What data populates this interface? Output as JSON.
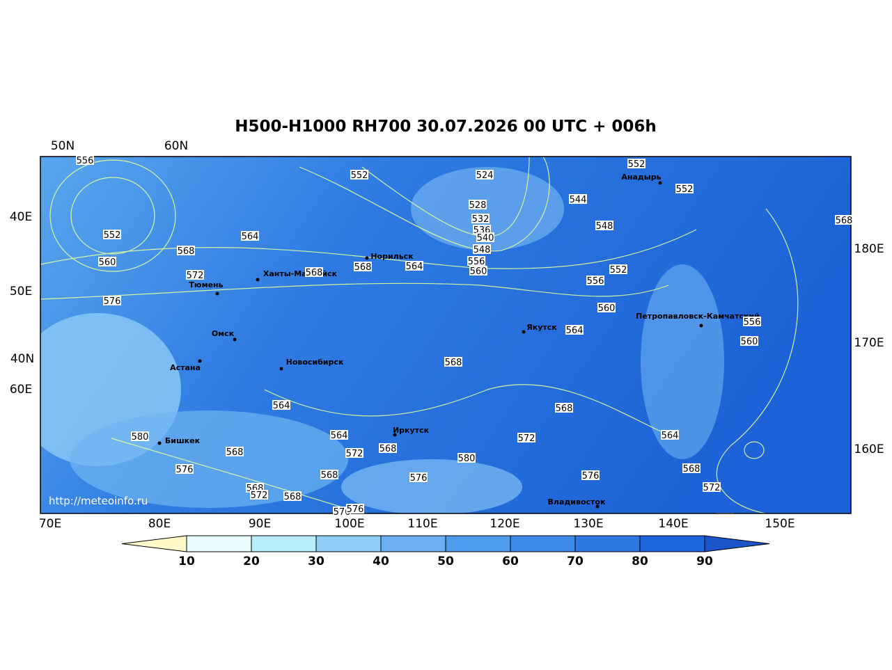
{
  "title": "H500-H1000 RH700 30.07.2026 00 UTC + 006h",
  "top_labels": [
    "50N",
    "60N"
  ],
  "left_labels": [
    "40E",
    "50E",
    "40N",
    "60E"
  ],
  "right_labels": [
    "180E",
    "170E",
    "160E"
  ],
  "bottom_labels": [
    "70E",
    "80E",
    "90E",
    "100E",
    "110E",
    "120E",
    "130E",
    "140E",
    "150E"
  ],
  "cities": [
    "Анадырь",
    "Норильск",
    "Ханты-Мансийск",
    "Тюмень",
    "Якутск",
    "Петропавловск-Камчатский",
    "Омск",
    "Астана",
    "Новосибирск",
    "Иркутск",
    "Бишкек",
    "Владивосток"
  ],
  "contour_labels": [
    "556",
    "552",
    "524",
    "552",
    "552",
    "528",
    "544",
    "532",
    "536",
    "540",
    "548",
    "552",
    "564",
    "568",
    "548",
    "560",
    "568",
    "564",
    "556",
    "560",
    "552",
    "572",
    "568",
    "556",
    "568",
    "576",
    "560",
    "556",
    "564",
    "560",
    "568",
    "564",
    "568",
    "580",
    "564",
    "572",
    "564",
    "568",
    "572",
    "568",
    "580",
    "576",
    "568",
    "576",
    "568",
    "576",
    "572",
    "568",
    "572",
    "568",
    "576",
    "576"
  ],
  "watermark": "http://meteoinfo.ru",
  "colorbar": {
    "ticks": [
      10,
      20,
      30,
      40,
      50,
      60,
      70,
      80,
      90
    ],
    "colors": [
      "#fff8c8",
      "#e8fbff",
      "#b8eefc",
      "#90cdf7",
      "#6cb0f2",
      "#4d9cee",
      "#3d8aea",
      "#2e78e4",
      "#1e66dc",
      "#1a55cc"
    ]
  }
}
